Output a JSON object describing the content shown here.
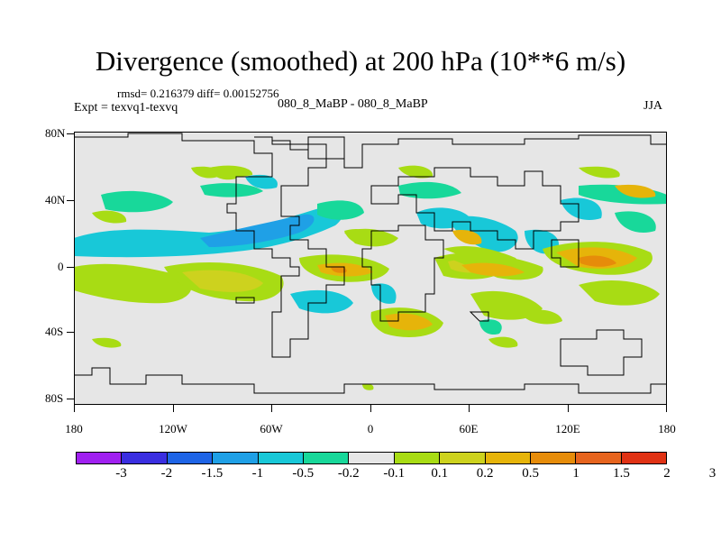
{
  "title": "Divergence (smoothed) at 200 hPa (10**6 m/s)",
  "rmsd_text": "rmsd= 0.216379 diff= 0.00152756",
  "expt_text": "Expt = texvq1-texvq",
  "center_label": "080_8_MaBP - 080_8_MaBP",
  "season": "JJA",
  "lat_labels": [
    "80N",
    "40N",
    "0",
    "40S",
    "80S"
  ],
  "lon_labels": [
    "180",
    "120W",
    "60W",
    "0",
    "60E",
    "120E",
    "180"
  ],
  "colorbar": {
    "colors": [
      "#a020f0",
      "#3a2ee0",
      "#1e64e6",
      "#1fa0e6",
      "#18c8d8",
      "#18d89a",
      "#e6e6e6",
      "#a8dc14",
      "#cdd21e",
      "#e6b40a",
      "#e68c0a",
      "#e6641e",
      "#e03214"
    ],
    "labels": [
      "-3",
      "-2",
      "-1.5",
      "-1",
      "-0.5",
      "-0.2",
      "-0.1",
      "0.1",
      "0.2",
      "0.5",
      "1",
      "1.5",
      "2",
      "3"
    ]
  },
  "colors": {
    "background": "#e6e6e6",
    "outline": "#000000"
  }
}
